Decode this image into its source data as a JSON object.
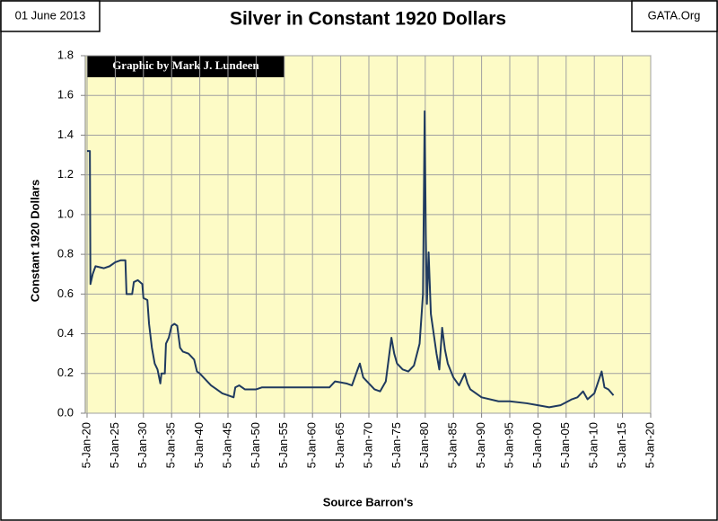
{
  "chart_data": {
    "type": "line",
    "title": "Silver in Constant 1920 Dollars",
    "date": "01 June 2013",
    "source_site": "GATA.Org",
    "annotation": "Graphic by Mark J. Lundeen",
    "x_label": "Source Barron's",
    "y_label": "Constant 1920 Dollars",
    "color": "#1f3a5f",
    "grid": true,
    "x": [
      1920,
      1920.5,
      1920.6,
      1921,
      1921.5,
      1923,
      1924,
      1925,
      1926,
      1926.8,
      1927,
      1928,
      1928.3,
      1929,
      1929.8,
      1930,
      1930.7,
      1931,
      1931.5,
      1932,
      1932.5,
      1933,
      1933.2,
      1933.8,
      1934,
      1934.5,
      1935,
      1935.5,
      1936,
      1936.5,
      1937,
      1938,
      1939,
      1939.5,
      1940,
      1941,
      1942,
      1943,
      1944,
      1945,
      1946,
      1946.3,
      1947,
      1948,
      1949,
      1950,
      1951,
      1952,
      1953,
      1955,
      1960,
      1963,
      1964,
      1966,
      1967,
      1968,
      1968.4,
      1969,
      1970,
      1971,
      1972,
      1973,
      1974,
      1974.5,
      1975,
      1976,
      1977,
      1978,
      1979,
      1979.6,
      1979.9,
      1980.1,
      1980.3,
      1980.6,
      1981,
      1982,
      1982.5,
      1983,
      1983.5,
      1984,
      1985,
      1986,
      1987,
      1987.5,
      1988,
      1990,
      1993,
      1995,
      1998,
      2000,
      2002,
      2004,
      2006,
      2007,
      2008,
      2008.8,
      2010,
      2011.3,
      2011.8,
      2012.5,
      2013.4
    ],
    "values": [
      1.32,
      1.32,
      0.65,
      0.7,
      0.74,
      0.73,
      0.74,
      0.76,
      0.77,
      0.77,
      0.6,
      0.6,
      0.66,
      0.67,
      0.65,
      0.58,
      0.57,
      0.45,
      0.33,
      0.25,
      0.22,
      0.15,
      0.2,
      0.2,
      0.35,
      0.38,
      0.44,
      0.45,
      0.44,
      0.33,
      0.31,
      0.3,
      0.27,
      0.21,
      0.2,
      0.17,
      0.14,
      0.12,
      0.1,
      0.09,
      0.08,
      0.13,
      0.14,
      0.12,
      0.12,
      0.12,
      0.13,
      0.13,
      0.13,
      0.13,
      0.13,
      0.13,
      0.16,
      0.15,
      0.14,
      0.22,
      0.25,
      0.18,
      0.15,
      0.12,
      0.11,
      0.16,
      0.38,
      0.3,
      0.25,
      0.22,
      0.21,
      0.24,
      0.35,
      0.6,
      1.52,
      0.9,
      0.55,
      0.81,
      0.5,
      0.3,
      0.22,
      0.43,
      0.32,
      0.25,
      0.18,
      0.14,
      0.2,
      0.15,
      0.12,
      0.08,
      0.06,
      0.06,
      0.05,
      0.04,
      0.03,
      0.04,
      0.07,
      0.08,
      0.11,
      0.07,
      0.1,
      0.21,
      0.13,
      0.12,
      0.09
    ],
    "xlim": [
      1920,
      2020
    ],
    "xticks": [
      {
        "value": 1920,
        "label": "5-Jan-20"
      },
      {
        "value": 1925,
        "label": "5-Jan-25"
      },
      {
        "value": 1930,
        "label": "5-Jan-30"
      },
      {
        "value": 1935,
        "label": "5-Jan-35"
      },
      {
        "value": 1940,
        "label": "5-Jan-40"
      },
      {
        "value": 1945,
        "label": "5-Jan-45"
      },
      {
        "value": 1950,
        "label": "5-Jan-50"
      },
      {
        "value": 1955,
        "label": "5-Jan-55"
      },
      {
        "value": 1960,
        "label": "5-Jan-60"
      },
      {
        "value": 1965,
        "label": "5-Jan-65"
      },
      {
        "value": 1970,
        "label": "5-Jan-70"
      },
      {
        "value": 1975,
        "label": "5-Jan-75"
      },
      {
        "value": 1980,
        "label": "5-Jan-80"
      },
      {
        "value": 1985,
        "label": "5-Jan-85"
      },
      {
        "value": 1990,
        "label": "5-Jan-90"
      },
      {
        "value": 1995,
        "label": "5-Jan-95"
      },
      {
        "value": 2000,
        "label": "5-Jan-00"
      },
      {
        "value": 2005,
        "label": "5-Jan-05"
      },
      {
        "value": 2010,
        "label": "5-Jan-10"
      },
      {
        "value": 2015,
        "label": "5-Jan-15"
      },
      {
        "value": 2020,
        "label": "5-Jan-20"
      }
    ],
    "ylim": [
      0,
      1.8
    ],
    "yticks": [
      {
        "value": 0,
        "label": "0.0"
      },
      0.2,
      0.4,
      0.6,
      0.8,
      {
        "value": 1,
        "label": "1.0"
      },
      1.2,
      1.4,
      1.6,
      1.8
    ]
  }
}
